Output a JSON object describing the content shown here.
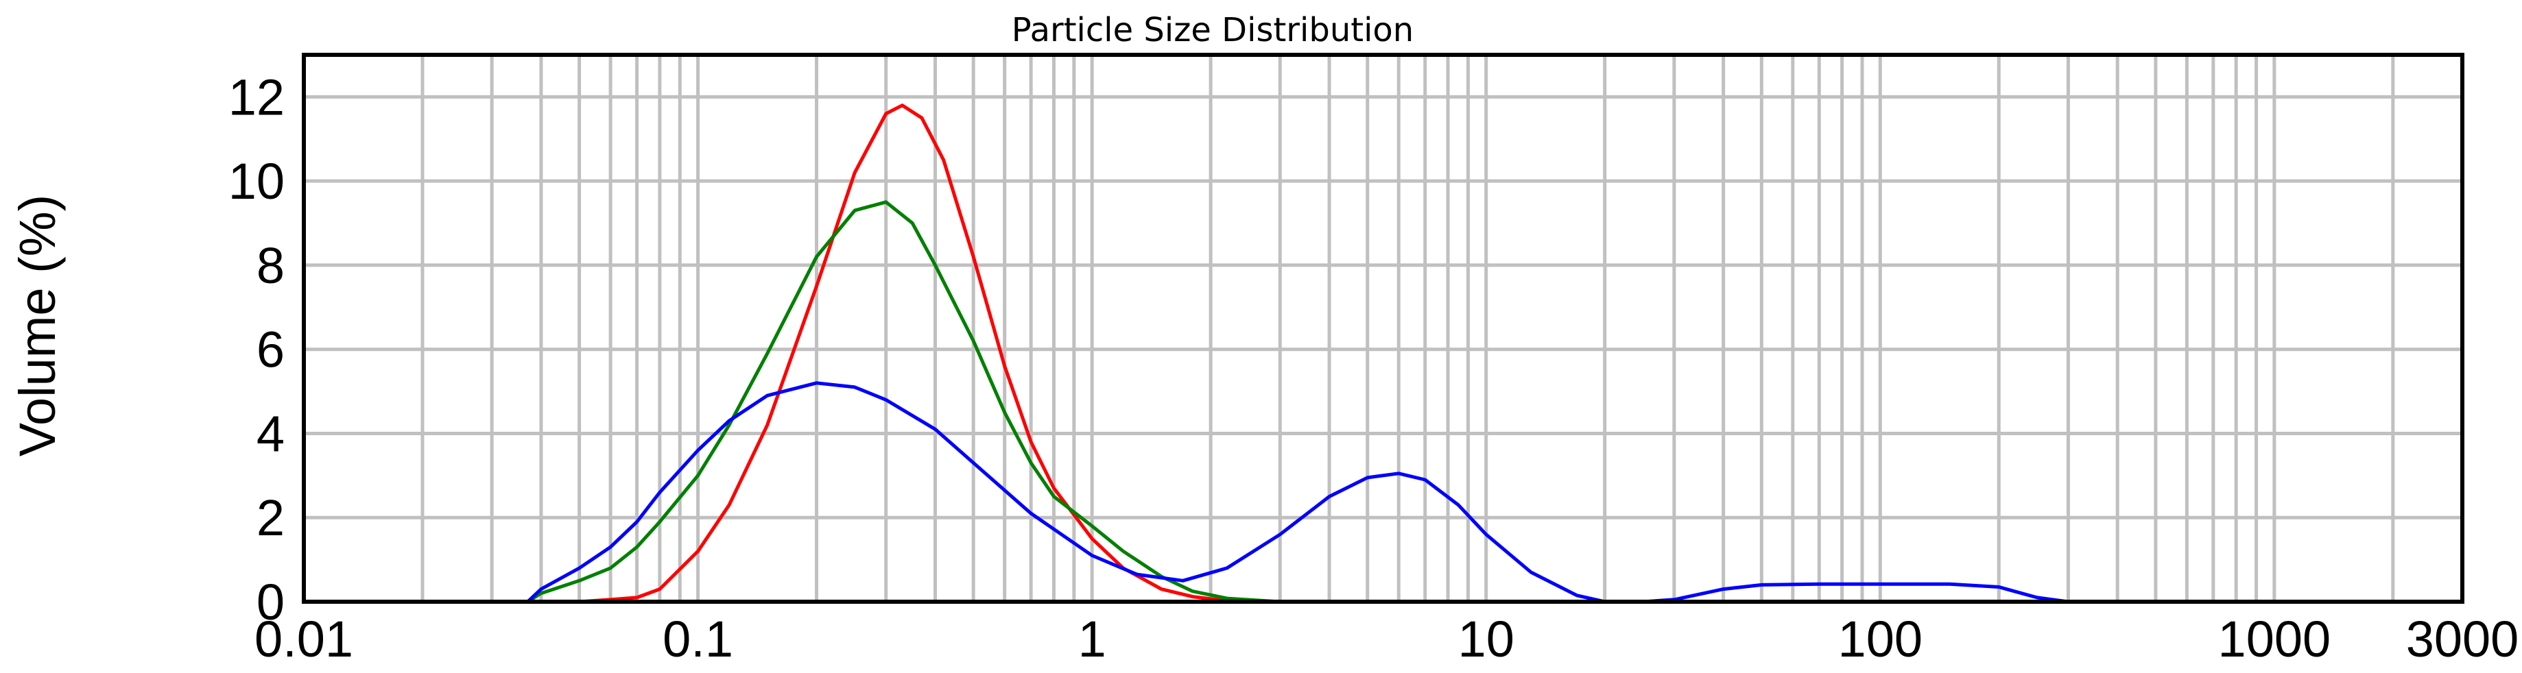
{
  "chart_data": {
    "type": "line",
    "title": "Particle Size Distribution",
    "xlabel": "",
    "ylabel": "Volume (%)",
    "xscale": "log",
    "xlim": [
      0.01,
      3000
    ],
    "ylim": [
      0,
      13
    ],
    "grid": true,
    "legend": "none",
    "x_ticks": [
      {
        "value": 0.01,
        "label": "0.01"
      },
      {
        "value": 0.1,
        "label": "0.1"
      },
      {
        "value": 1,
        "label": "1"
      },
      {
        "value": 10,
        "label": "10"
      },
      {
        "value": 100,
        "label": "100"
      },
      {
        "value": 1000,
        "label": "1000"
      },
      {
        "value": 3000,
        "label": "3000"
      }
    ],
    "y_ticks": [
      0,
      2,
      4,
      6,
      8,
      10,
      12
    ],
    "series": [
      {
        "color": "#ff0000",
        "x": [
          0.02,
          0.04,
          0.05,
          0.06,
          0.07,
          0.08,
          0.1,
          0.12,
          0.15,
          0.2,
          0.25,
          0.3,
          0.33,
          0.37,
          0.42,
          0.5,
          0.6,
          0.7,
          0.8,
          1.0,
          1.2,
          1.5,
          1.8,
          2.2,
          3.0,
          5.0,
          10,
          50,
          250
        ],
        "y": [
          0,
          0,
          0,
          0.05,
          0.1,
          0.3,
          1.2,
          2.3,
          4.2,
          7.5,
          10.2,
          11.6,
          11.8,
          11.5,
          10.5,
          8.2,
          5.6,
          3.8,
          2.7,
          1.5,
          0.8,
          0.3,
          0.12,
          0.02,
          0,
          0,
          0,
          0,
          0
        ]
      },
      {
        "color": "#008000",
        "x": [
          0.02,
          0.037,
          0.04,
          0.05,
          0.06,
          0.07,
          0.08,
          0.1,
          0.12,
          0.15,
          0.2,
          0.25,
          0.3,
          0.35,
          0.4,
          0.5,
          0.6,
          0.7,
          0.8,
          1.0,
          1.2,
          1.5,
          1.8,
          2.2,
          3.0,
          5.0,
          10,
          50,
          250
        ],
        "y": [
          0,
          0,
          0.2,
          0.5,
          0.8,
          1.3,
          1.9,
          3.0,
          4.2,
          5.9,
          8.2,
          9.3,
          9.5,
          9.0,
          8.0,
          6.2,
          4.5,
          3.3,
          2.5,
          1.8,
          1.2,
          0.6,
          0.25,
          0.08,
          0,
          0,
          0,
          0,
          0
        ]
      },
      {
        "color": "#0000ff",
        "x": [
          0.02,
          0.037,
          0.04,
          0.05,
          0.06,
          0.07,
          0.08,
          0.1,
          0.12,
          0.15,
          0.2,
          0.25,
          0.3,
          0.4,
          0.5,
          0.7,
          1.0,
          1.3,
          1.7,
          2.2,
          3.0,
          4.0,
          5.0,
          6.0,
          7.0,
          8.5,
          10,
          13,
          17,
          20,
          25,
          30,
          40,
          50,
          70,
          100,
          150,
          200,
          250,
          300,
          500,
          2000
        ],
        "y": [
          0,
          0,
          0.3,
          0.8,
          1.3,
          1.9,
          2.6,
          3.6,
          4.3,
          4.9,
          5.2,
          5.1,
          4.8,
          4.1,
          3.3,
          2.1,
          1.1,
          0.65,
          0.5,
          0.8,
          1.6,
          2.5,
          2.95,
          3.05,
          2.9,
          2.3,
          1.6,
          0.7,
          0.15,
          0,
          0,
          0.05,
          0.3,
          0.4,
          0.42,
          0.42,
          0.42,
          0.35,
          0.1,
          0,
          0,
          0
        ]
      }
    ]
  }
}
